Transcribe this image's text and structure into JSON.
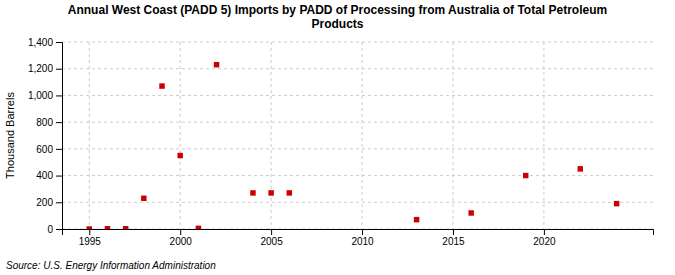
{
  "chart_data": {
    "type": "scatter",
    "title": "Annual West Coast (PADD 5) Imports by PADD of Processing from Australia of Total Petroleum\nProducts",
    "ylabel": "Thousand Barrels",
    "annotations": [
      "Source: U.S. Energy Information Administration"
    ],
    "x": [
      1995,
      1996,
      1997,
      1998,
      1999,
      2000,
      2001,
      2002,
      2004,
      2005,
      2006,
      2013,
      2016,
      2019,
      2022,
      2024
    ],
    "values": [
      0,
      2,
      2,
      230,
      1070,
      550,
      5,
      1230,
      270,
      270,
      270,
      70,
      120,
      400,
      450,
      190
    ],
    "color": "#cc0000",
    "marker": "square",
    "xlim": [
      1993.5,
      2026
    ],
    "ylim": [
      0,
      1400
    ],
    "xticks": [
      1995,
      2000,
      2005,
      2010,
      2015,
      2020
    ],
    "yticks": [
      0,
      200,
      400,
      600,
      800,
      {
        "value": 1000,
        "label": "1,000"
      },
      {
        "value": 1200,
        "label": "1,200"
      },
      {
        "value": 1400,
        "label": "1,400"
      }
    ],
    "grid": true
  }
}
